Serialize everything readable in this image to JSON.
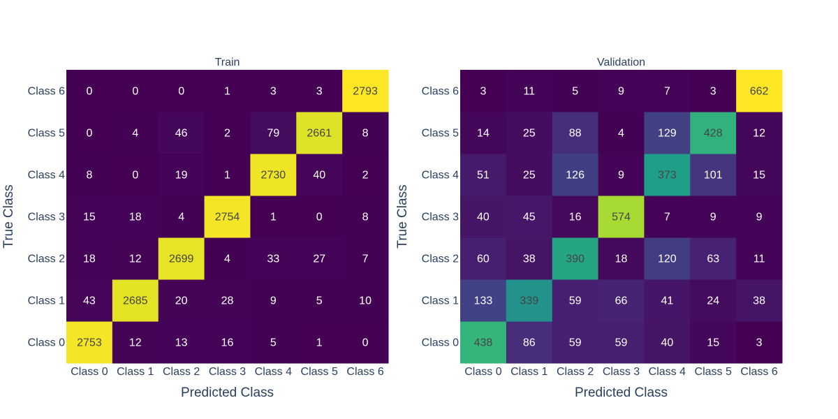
{
  "chart_data": [
    {
      "type": "heatmap",
      "title": "Train",
      "xlabel": "Predicted Class",
      "ylabel": "True Class",
      "x_categories": [
        "Class 0",
        "Class 1",
        "Class 2",
        "Class 3",
        "Class 4",
        "Class 5",
        "Class 6"
      ],
      "y_categories": [
        "Class 0",
        "Class 1",
        "Class 2",
        "Class 3",
        "Class 4",
        "Class 5",
        "Class 6"
      ],
      "colorscale": "viridis",
      "show_colorbar": false,
      "values": [
        [
          2753,
          12,
          13,
          16,
          5,
          1,
          0
        ],
        [
          43,
          2685,
          20,
          28,
          9,
          5,
          10
        ],
        [
          18,
          12,
          2699,
          4,
          33,
          27,
          7
        ],
        [
          15,
          18,
          4,
          2754,
          1,
          0,
          8
        ],
        [
          8,
          0,
          19,
          1,
          2730,
          40,
          2
        ],
        [
          0,
          4,
          46,
          2,
          79,
          2661,
          8
        ],
        [
          0,
          0,
          0,
          1,
          3,
          3,
          2793
        ]
      ]
    },
    {
      "type": "heatmap",
      "title": "Validation",
      "xlabel": "Predicted Class",
      "ylabel": "True Class",
      "x_categories": [
        "Class 0",
        "Class 1",
        "Class 2",
        "Class 3",
        "Class 4",
        "Class 5",
        "Class 6"
      ],
      "y_categories": [
        "Class 0",
        "Class 1",
        "Class 2",
        "Class 3",
        "Class 4",
        "Class 5",
        "Class 6"
      ],
      "colorscale": "viridis",
      "show_colorbar": false,
      "values": [
        [
          438,
          86,
          59,
          59,
          40,
          15,
          3
        ],
        [
          133,
          339,
          59,
          66,
          41,
          24,
          38
        ],
        [
          60,
          38,
          390,
          18,
          120,
          63,
          11
        ],
        [
          40,
          45,
          16,
          574,
          7,
          9,
          9
        ],
        [
          51,
          25,
          126,
          9,
          373,
          101,
          15
        ],
        [
          14,
          25,
          88,
          4,
          129,
          428,
          12
        ],
        [
          3,
          11,
          5,
          9,
          7,
          3,
          662
        ]
      ]
    }
  ]
}
